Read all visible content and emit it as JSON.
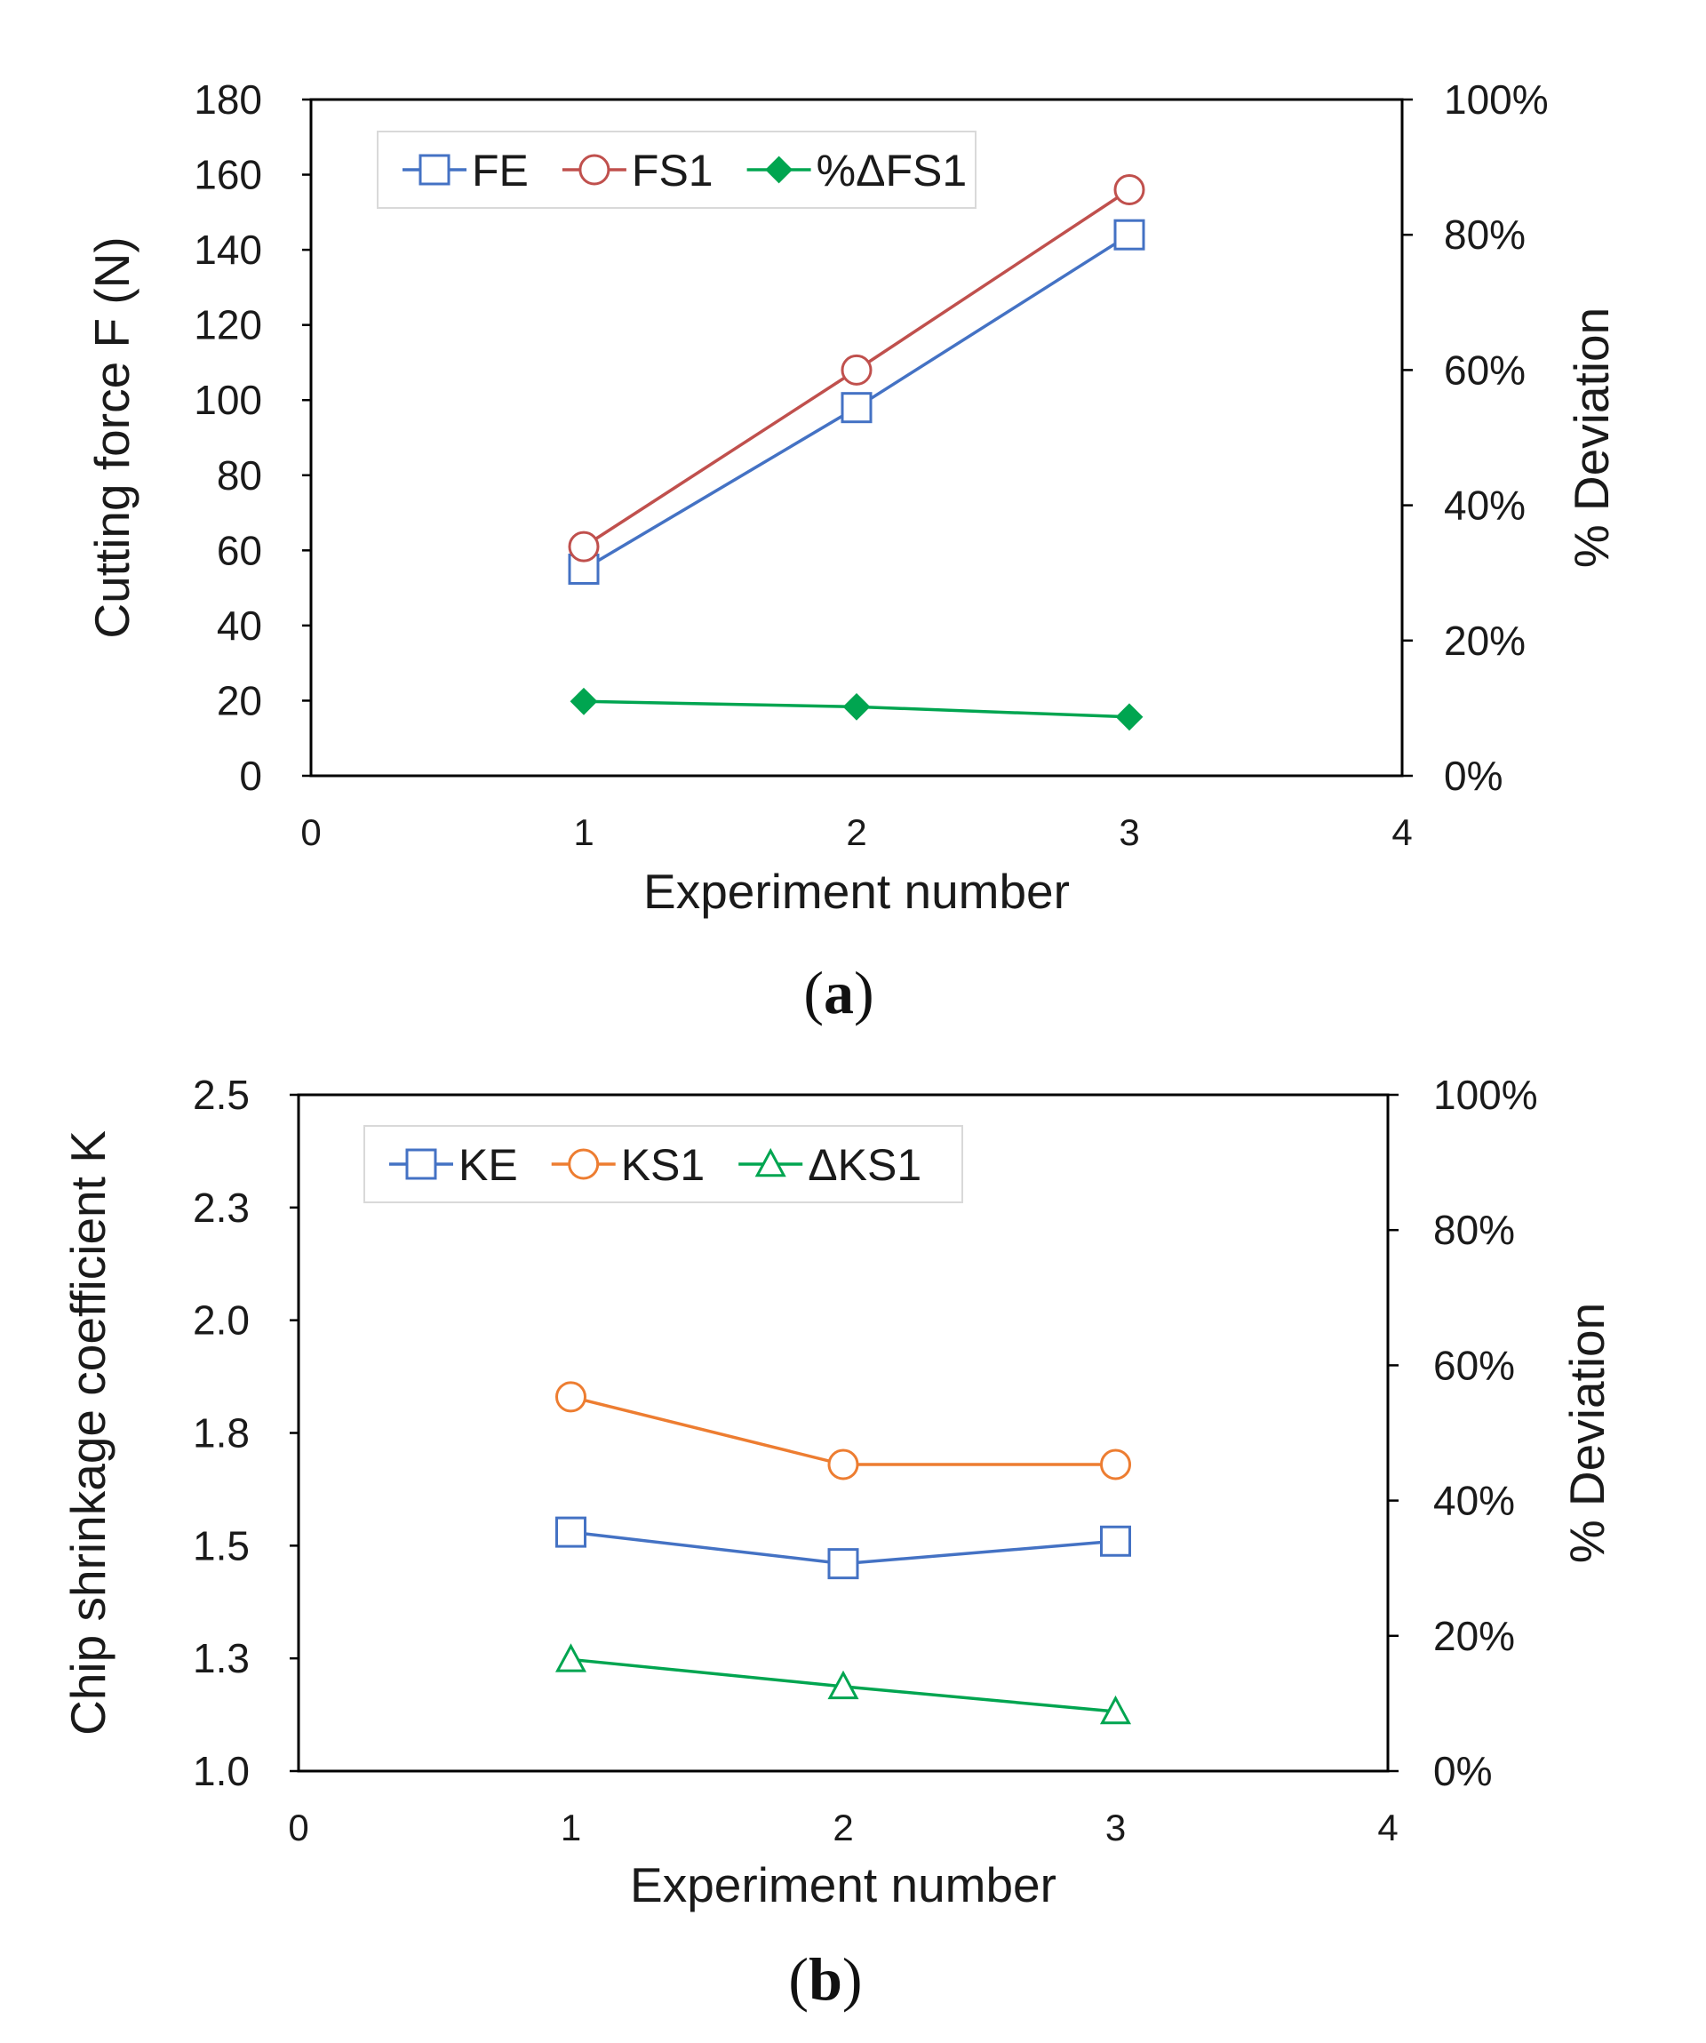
{
  "chart_data": [
    {
      "type": "line",
      "panel_label": "a",
      "xlabel": "Experiment number",
      "ylabel": "Cutting force F (N)",
      "y2label": "% Deviation",
      "xlim": [
        0,
        4
      ],
      "ylim": [
        0,
        180
      ],
      "y2lim": [
        0,
        1
      ],
      "xticks": [
        "0",
        "1",
        "2",
        "3",
        "4"
      ],
      "yticks": [
        "0",
        "20",
        "40",
        "60",
        "80",
        "100",
        "120",
        "140",
        "160",
        "180"
      ],
      "y2ticks": [
        "0%",
        "20%",
        "40%",
        "60%",
        "80%",
        "100%"
      ],
      "legend_position": "top-left",
      "series": [
        {
          "name": "FE",
          "axis": "left",
          "marker": "square",
          "color": "#4472C4",
          "x": [
            1,
            2,
            3
          ],
          "values": [
            55,
            98,
            144
          ]
        },
        {
          "name": "FS1",
          "axis": "left",
          "marker": "circle",
          "color": "#C0504D",
          "x": [
            1,
            2,
            3
          ],
          "values": [
            61,
            108,
            156
          ]
        },
        {
          "name": "%ΔFS1",
          "axis": "right",
          "marker": "diamond-filled",
          "color": "#00A550",
          "x": [
            1,
            2,
            3
          ],
          "values": [
            0.11,
            0.102,
            0.087
          ]
        }
      ]
    },
    {
      "type": "line",
      "panel_label": "b",
      "xlabel": "Experiment number",
      "ylabel": "Chip shrinkage coefficient K",
      "y2label": "% Deviation",
      "xlim": [
        0,
        4
      ],
      "ylim": [
        1.0,
        2.5
      ],
      "y2lim": [
        0,
        1
      ],
      "xticks": [
        "0",
        "1",
        "2",
        "3",
        "4"
      ],
      "yticks": [
        "1.0",
        "1.3",
        "1.5",
        "1.8",
        "2.0",
        "2.3",
        "2.5"
      ],
      "y2ticks": [
        "0%",
        "20%",
        "40%",
        "60%",
        "80%",
        "100%"
      ],
      "legend_position": "top-left",
      "series": [
        {
          "name": "KE",
          "axis": "left",
          "marker": "square",
          "color": "#4472C4",
          "x": [
            1,
            2,
            3
          ],
          "values": [
            1.53,
            1.46,
            1.51
          ]
        },
        {
          "name": "KS1",
          "axis": "left",
          "marker": "circle",
          "color": "#ED7D31",
          "x": [
            1,
            2,
            3
          ],
          "values": [
            1.83,
            1.68,
            1.68
          ]
        },
        {
          "name": "ΔKS1",
          "axis": "right",
          "marker": "triangle",
          "color": "#00A550",
          "x": [
            1,
            2,
            3
          ],
          "values": [
            0.165,
            0.125,
            0.088
          ]
        }
      ]
    }
  ]
}
